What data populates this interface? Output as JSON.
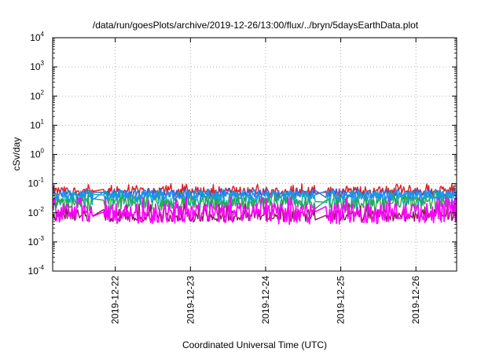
{
  "chart_data": {
    "type": "line",
    "title": "/data/run/goesPlots/archive/2019-12-26/13:00/flux/../bryn/5daysEarthData.plot",
    "xlabel": "Coordinated Universal Time (UTC)",
    "ylabel": "cSv/day",
    "yscale": "log",
    "ylim": [
      0.0001,
      10000
    ],
    "xlim": [
      "2019-12-21T04:00",
      "2019-12-26T13:00"
    ],
    "grid": true,
    "y_ticks": [
      {
        "base": "10",
        "exp": "-4"
      },
      {
        "base": "10",
        "exp": "-3"
      },
      {
        "base": "10",
        "exp": "-2"
      },
      {
        "base": "10",
        "exp": "-1"
      },
      {
        "base": "10",
        "exp": "0"
      },
      {
        "base": "10",
        "exp": "1"
      },
      {
        "base": "10",
        "exp": "2"
      },
      {
        "base": "10",
        "exp": "3"
      },
      {
        "base": "10",
        "exp": "4"
      }
    ],
    "x_ticks": [
      "2019-12-22",
      "2019-12-23",
      "2019-12-24",
      "2019-12-25",
      "2019-12-26"
    ],
    "gap": {
      "start": "2019-12-21T17:00",
      "end": "2019-12-21T20:00"
    },
    "gap2": {
      "start": "2019-12-24T16:00",
      "end": "2019-12-24T19:00"
    },
    "series": [
      {
        "color": "#e41a1c",
        "typical": 0.055,
        "low": 0.035,
        "high": 0.1
      },
      {
        "color": "#3a5fcd",
        "typical": 0.045,
        "low": 0.03,
        "high": 0.07
      },
      {
        "color": "#00b3a4",
        "typical": 0.03,
        "low": 0.012,
        "high": 0.06
      },
      {
        "color": "#2ea44f",
        "typical": 0.022,
        "low": 0.01,
        "high": 0.045
      },
      {
        "color": "#1e90ff",
        "typical": 0.04,
        "low": 0.025,
        "high": 0.065
      },
      {
        "color": "#8b1a5a",
        "typical": 0.008,
        "low": 0.005,
        "high": 0.02
      },
      {
        "color": "#ff00ff",
        "typical": 0.01,
        "low": 0.004,
        "high": 0.035
      }
    ]
  }
}
